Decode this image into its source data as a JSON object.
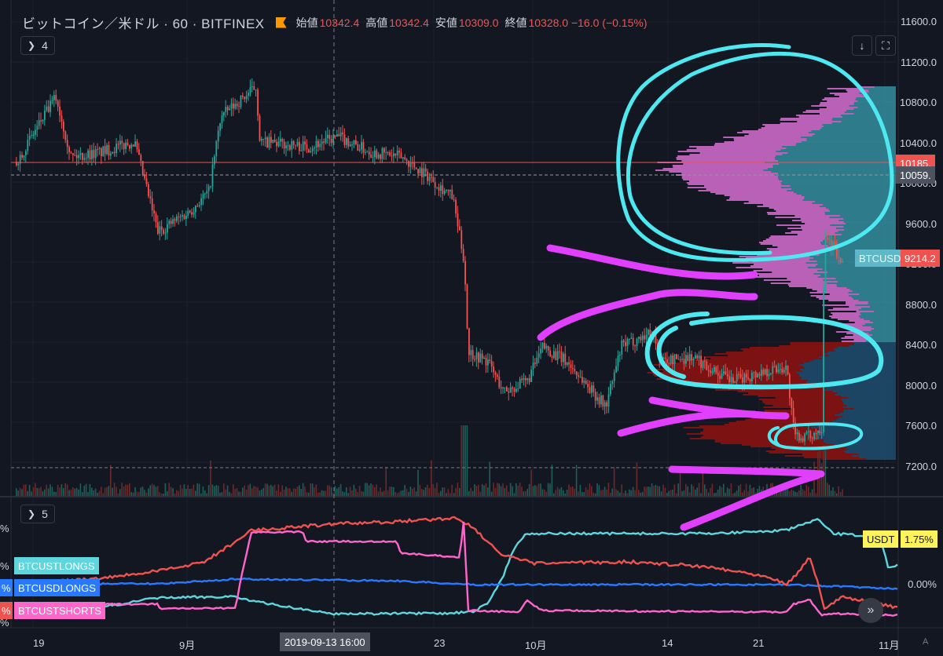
{
  "header": {
    "symbol": "ビットコイン／米ドル · 60 · BITFINEX",
    "open_label": "始値",
    "open_value": "10342.4",
    "high_label": "高値",
    "high_value": "10342.4",
    "low_label": "安値",
    "low_value": "10309.0",
    "close_label": "終値",
    "close_value": "10328.0 −16.0 (−0.15%)"
  },
  "main_pane": {
    "indicator_toggle": "4",
    "download_icon": "download-icon",
    "fullscreen_icon": "fullscreen-icon",
    "y_ticks": [
      "11600.0",
      "11200.0",
      "10800.0",
      "10400.0",
      "10000.0",
      "9600.0",
      "9200.0",
      "8800.0",
      "8400.0",
      "8000.0",
      "7600.0",
      "7200.0"
    ],
    "price_tags": {
      "red_line": "10185.",
      "dashed_line": "10059.",
      "btcusd_label": "BTCUSD",
      "btcusd_value": "9214.2"
    }
  },
  "lower_pane": {
    "indicator_toggle": "5",
    "series_labels": [
      "BTCUSTLONGS",
      "BTCUSDLONGS",
      "BTCUSTSHORTS"
    ],
    "left_percent_marks": [
      "%",
      "%",
      "%",
      "%",
      "%"
    ],
    "usdt_label": "USDT",
    "usdt_value": "1.75%",
    "zero_tick": "0.00%"
  },
  "x_axis": {
    "ticks": [
      "19",
      "9月",
      "23",
      "10月",
      "14",
      "21",
      "11月"
    ],
    "crosshair_label": "2019-09-13   16:00"
  },
  "colors": {
    "background": "#131722",
    "bull": "#26a69a",
    "bear": "#ef5350",
    "cyan": "#5fd6de",
    "blue": "#2979ff",
    "pink": "#ff66cc",
    "annotation_cyan": "#4ee8f0",
    "annotation_magenta": "#e040fb"
  }
}
